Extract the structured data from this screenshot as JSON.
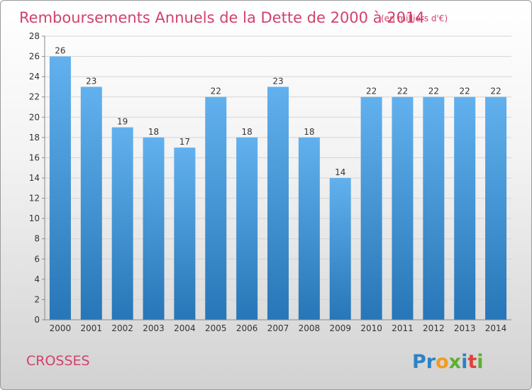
{
  "chart_data": {
    "type": "bar",
    "title": "Remboursements Annuels de la Dette de 2000 à 2014",
    "subtitle": "(en milliers d'€)",
    "categories": [
      "2000",
      "2001",
      "2002",
      "2003",
      "2004",
      "2005",
      "2006",
      "2007",
      "2008",
      "2009",
      "2010",
      "2011",
      "2012",
      "2013",
      "2014"
    ],
    "values": [
      26,
      23,
      19,
      18,
      17,
      22,
      18,
      23,
      18,
      14,
      22,
      22,
      22,
      22,
      22
    ],
    "ylim": [
      0,
      28
    ],
    "yticks": [
      0,
      2,
      4,
      6,
      8,
      10,
      12,
      14,
      16,
      18,
      20,
      22,
      24,
      26,
      28
    ],
    "grid": "horizontal",
    "xlabel": "",
    "ylabel": ""
  },
  "footer": {
    "commune": "CROSSES",
    "logo_text": "Proxiti"
  },
  "colors": {
    "bar_light": "#62b1ee",
    "bar_dark": "#2776b7",
    "title": "#d2416c",
    "grid": "#d4d4d4"
  }
}
